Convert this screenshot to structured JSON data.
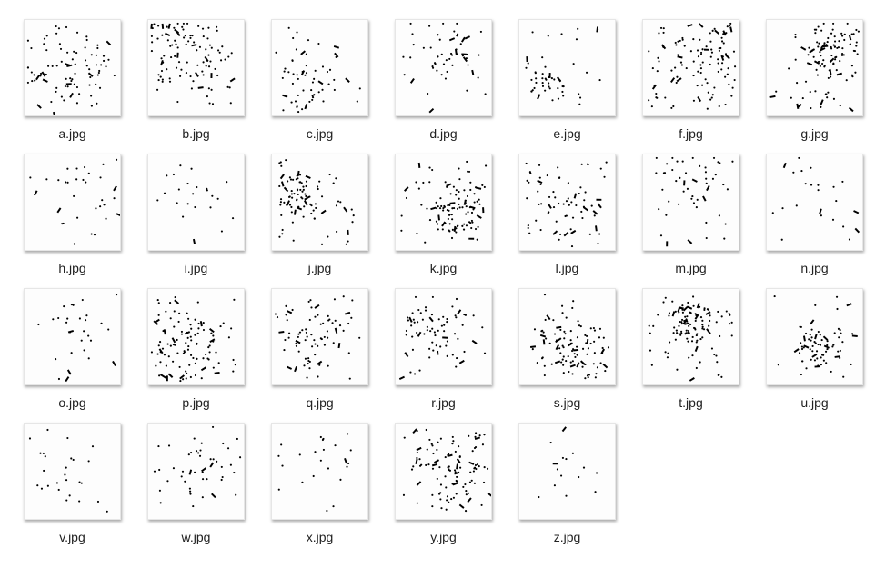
{
  "files": [
    "a.jpg",
    "b.jpg",
    "c.jpg",
    "d.jpg",
    "e.jpg",
    "f.jpg",
    "g.jpg",
    "h.jpg",
    "i.jpg",
    "j.jpg",
    "k.jpg",
    "l.jpg",
    "m.jpg",
    "n.jpg",
    "o.jpg",
    "p.jpg",
    "q.jpg",
    "r.jpg",
    "s.jpg",
    "t.jpg",
    "u.jpg",
    "v.jpg",
    "w.jpg",
    "x.jpg",
    "y.jpg",
    "z.jpg"
  ]
}
